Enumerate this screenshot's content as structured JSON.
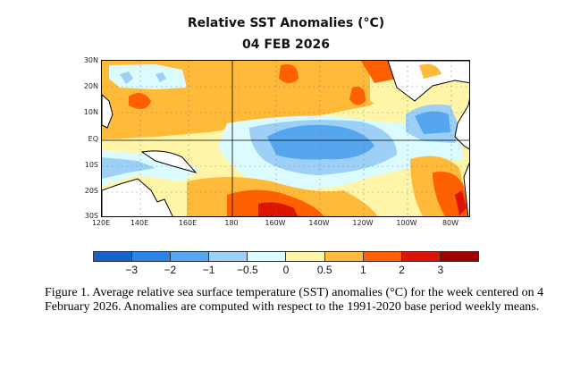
{
  "title": "Relative SST Anomalies (°C)",
  "date": "04 FEB 2026",
  "map": {
    "lat_labels": [
      "30N",
      "20N",
      "10N",
      "EQ",
      "10S",
      "20S",
      "30S"
    ],
    "lon_labels": [
      "120E",
      "140E",
      "160E",
      "180",
      "160W",
      "140W",
      "120W",
      "100W",
      "80W"
    ]
  },
  "colorbar": {
    "colors": [
      "#1565c8",
      "#2a83e6",
      "#55a6ef",
      "#9dd0f6",
      "#dcfbff",
      "#fff5a8",
      "#ffba3a",
      "#ff6000",
      "#dd1400",
      "#a00000"
    ],
    "labels": [
      "−3",
      "−2",
      "−1",
      "−0.5",
      "0",
      "0.5",
      "1",
      "2",
      "3"
    ]
  },
  "caption": "Figure 1. Average relative sea surface temperature (SST) anomalies (°C) for the week centered on 4 February 2026.  Anomalies are computed with respect to the 1991-2020 base period weekly means."
}
